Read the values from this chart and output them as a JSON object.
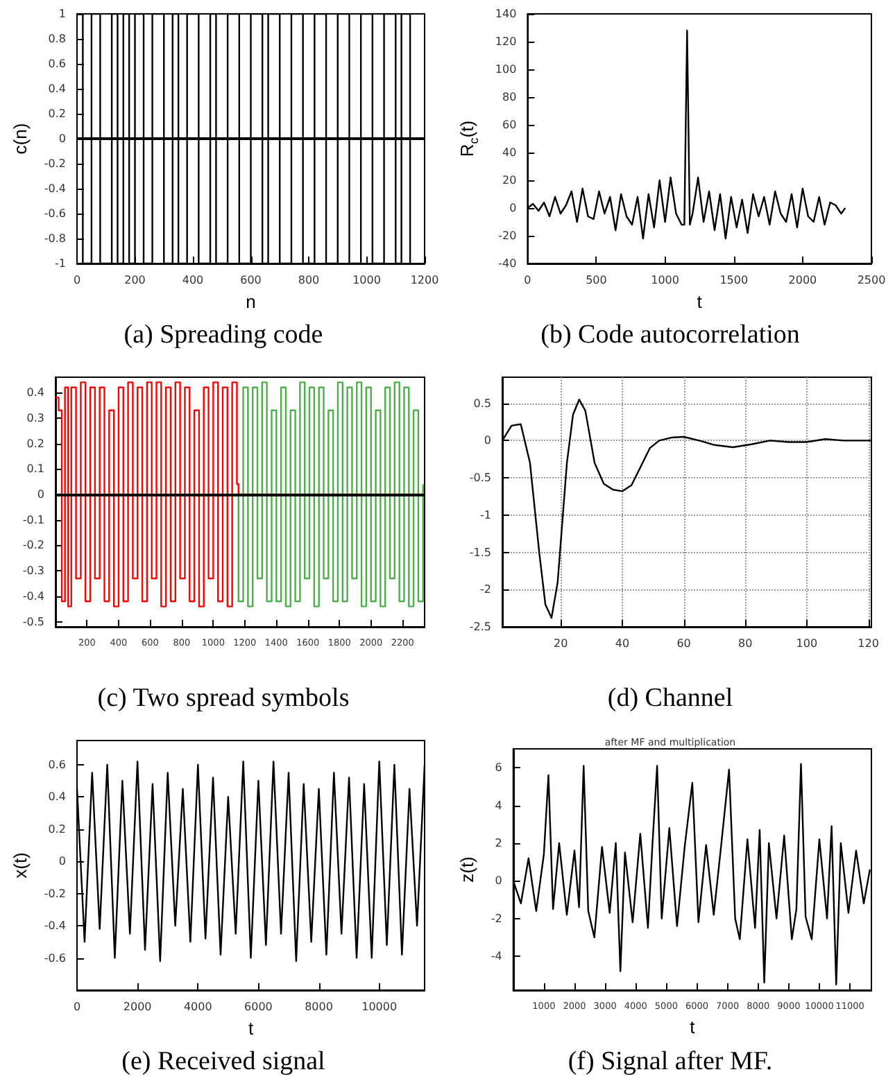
{
  "chart_data": [
    {
      "type": "step",
      "title": "(a) Spreading code",
      "xlabel": "n",
      "ylabel": "c(n)",
      "x": [
        0,
        20,
        50,
        80,
        120,
        140,
        160,
        180,
        200,
        230,
        260,
        300,
        330,
        350,
        380,
        420,
        460,
        480,
        520,
        560,
        600,
        640,
        660,
        700,
        740,
        780,
        820,
        860,
        900,
        940,
        980,
        1020,
        1060,
        1100,
        1120,
        1150
      ],
      "series": [
        {
          "color": "#000000",
          "values": [
            1,
            -1,
            1,
            -1,
            1,
            -1,
            1,
            -1,
            1,
            -1,
            1,
            -1,
            1,
            -1,
            1,
            -1,
            1,
            -1,
            1,
            -1,
            1,
            -1,
            1,
            -1,
            1,
            -1,
            1,
            -1,
            1,
            -1,
            1,
            -1,
            1,
            -1,
            1,
            -1
          ]
        }
      ],
      "xlim": [
        0,
        1200
      ],
      "xticks": [
        0,
        200,
        400,
        600,
        800,
        1000,
        1200
      ],
      "ylim": [
        -1,
        1
      ],
      "yticks": [
        -1,
        -0.8,
        -0.6,
        -0.4,
        -0.2,
        0,
        0.2,
        0.4,
        0.6,
        0.8,
        1
      ],
      "ref_lines": [
        {
          "axis": "y",
          "value": 0,
          "color": "#000000"
        }
      ]
    },
    {
      "type": "line",
      "title": "(b) Code autocorrelation",
      "xlabel": "t",
      "ylabel": "R$_{c}$(t)",
      "x": [
        0,
        40,
        80,
        120,
        160,
        200,
        240,
        280,
        320,
        360,
        400,
        440,
        480,
        520,
        560,
        600,
        640,
        680,
        720,
        760,
        800,
        840,
        880,
        920,
        960,
        1000,
        1040,
        1080,
        1120,
        1140,
        1160,
        1180,
        1200,
        1240,
        1280,
        1320,
        1360,
        1400,
        1440,
        1480,
        1520,
        1560,
        1600,
        1640,
        1680,
        1720,
        1760,
        1800,
        1840,
        1880,
        1920,
        1960,
        2000,
        2040,
        2080,
        2120,
        2160,
        2200,
        2240,
        2280,
        2310
      ],
      "series": [
        {
          "color": "#000000",
          "values": [
            0,
            3,
            -2,
            4,
            -6,
            8,
            -4,
            2,
            12,
            -10,
            14,
            -6,
            -8,
            12,
            -4,
            8,
            -16,
            10,
            -6,
            -12,
            8,
            -22,
            10,
            -14,
            20,
            -10,
            22,
            -4,
            -12,
            -12,
            128,
            -12,
            -4,
            22,
            -10,
            12,
            -16,
            10,
            -22,
            8,
            -14,
            6,
            -18,
            10,
            -6,
            8,
            -12,
            12,
            -4,
            -10,
            10,
            -14,
            14,
            -6,
            -10,
            8,
            -12,
            4,
            2,
            -4,
            0
          ]
        }
      ],
      "xlim": [
        0,
        2500
      ],
      "xticks": [
        0,
        500,
        1000,
        1500,
        2000,
        2500
      ],
      "ylim": [
        -40,
        140
      ],
      "yticks": [
        -40,
        -20,
        0,
        20,
        40,
        60,
        80,
        100,
        120,
        140
      ]
    },
    {
      "type": "step",
      "title": "(c) Two spread symbols",
      "series": [
        {
          "color": "#ff0000",
          "x": [
            0,
            20,
            40,
            60,
            80,
            100,
            130,
            160,
            190,
            220,
            250,
            280,
            310,
            340,
            370,
            400,
            430,
            460,
            490,
            520,
            550,
            580,
            610,
            640,
            670,
            700,
            730,
            760,
            790,
            820,
            850,
            880,
            910,
            940,
            970,
            1000,
            1030,
            1060,
            1090,
            1120,
            1150,
            1160,
            2340
          ],
          "values": [
            0.38,
            0.33,
            -0.42,
            0.42,
            -0.44,
            0.42,
            -0.33,
            0.44,
            -0.42,
            0.42,
            -0.33,
            0.42,
            -0.42,
            0.33,
            -0.44,
            0.42,
            -0.42,
            0.44,
            -0.33,
            0.42,
            -0.42,
            0.44,
            -0.33,
            0.44,
            -0.44,
            0.42,
            -0.42,
            0.44,
            -0.33,
            0.42,
            -0.42,
            0.33,
            -0.44,
            0.42,
            -0.33,
            0.44,
            -0.42,
            0.42,
            -0.44,
            0.44,
            0.04,
            0,
            0
          ]
        },
        {
          "color": "#4daf4a",
          "x": [
            0,
            1160,
            1190,
            1220,
            1250,
            1280,
            1310,
            1340,
            1370,
            1400,
            1430,
            1460,
            1490,
            1520,
            1550,
            1580,
            1610,
            1640,
            1670,
            1700,
            1730,
            1760,
            1790,
            1820,
            1850,
            1880,
            1910,
            1940,
            1970,
            2000,
            2030,
            2060,
            2090,
            2120,
            2150,
            2180,
            2210,
            2240,
            2270,
            2300,
            2330
          ],
          "values": [
            0,
            -0.42,
            0.42,
            -0.44,
            0.42,
            -0.33,
            0.44,
            -0.42,
            0.33,
            -0.42,
            0.42,
            -0.44,
            0.33,
            -0.42,
            0.44,
            -0.33,
            0.42,
            -0.44,
            0.42,
            -0.33,
            0.33,
            -0.42,
            0.44,
            -0.42,
            0.42,
            -0.33,
            0.44,
            -0.44,
            0.42,
            -0.42,
            0.33,
            -0.44,
            0.42,
            -0.33,
            0.44,
            -0.42,
            0.42,
            -0.44,
            0.33,
            -0.42,
            0.04
          ]
        }
      ],
      "xlim": [
        0,
        2340
      ],
      "xticks": [
        200,
        400,
        600,
        800,
        1000,
        1200,
        1400,
        1600,
        1800,
        2000,
        2200
      ],
      "ylim": [
        -0.52,
        0.46
      ],
      "yticks": [
        -0.5,
        -0.4,
        -0.3,
        -0.2,
        -0.1,
        0,
        0.1,
        0.2,
        0.3,
        0.4
      ],
      "ref_lines": [
        {
          "axis": "y",
          "value": 0,
          "color": "#000000"
        }
      ]
    },
    {
      "type": "line",
      "title": "(d) Channel",
      "grid": true,
      "x": [
        1,
        4,
        7,
        10,
        13,
        15,
        17,
        19,
        22,
        24,
        26,
        28,
        31,
        34,
        37,
        40,
        43,
        46,
        49,
        52,
        56,
        60,
        65,
        70,
        76,
        82,
        88,
        94,
        100,
        106,
        112,
        121
      ],
      "series": [
        {
          "color": "#000000",
          "values": [
            0,
            0.2,
            0.22,
            -0.3,
            -1.5,
            -2.2,
            -2.38,
            -1.9,
            -0.3,
            0.35,
            0.55,
            0.4,
            -0.3,
            -0.58,
            -0.66,
            -0.68,
            -0.6,
            -0.35,
            -0.1,
            0,
            0.04,
            0.05,
            0,
            -0.06,
            -0.09,
            -0.05,
            0,
            -0.02,
            -0.02,
            0.02,
            0,
            0
          ]
        }
      ],
      "xlim": [
        1,
        121
      ],
      "xticks": [
        20,
        40,
        60,
        80,
        100,
        120
      ],
      "ylim": [
        -2.5,
        0.85
      ],
      "yticks": [
        -2.5,
        -2,
        -1.5,
        -1,
        -0.5,
        0,
        0.5
      ]
    },
    {
      "type": "line",
      "title": "(e) Received signal",
      "xlabel": "t",
      "ylabel": "x(t)",
      "x": [
        0,
        250,
        500,
        750,
        1000,
        1250,
        1500,
        1750,
        2000,
        2250,
        2500,
        2750,
        3000,
        3250,
        3500,
        3750,
        4000,
        4250,
        4500,
        4750,
        5000,
        5250,
        5500,
        5750,
        6000,
        6250,
        6500,
        6750,
        7000,
        7250,
        7500,
        7750,
        8000,
        8250,
        8500,
        8750,
        9000,
        9250,
        9500,
        9750,
        10000,
        10250,
        10500,
        10750,
        11000,
        11250,
        11500
      ],
      "series": [
        {
          "color": "#000000",
          "values": [
            0.45,
            -0.5,
            0.55,
            -0.42,
            0.6,
            -0.6,
            0.5,
            -0.45,
            0.62,
            -0.55,
            0.48,
            -0.62,
            0.55,
            -0.4,
            0.45,
            -0.5,
            0.6,
            -0.48,
            0.52,
            -0.58,
            0.4,
            -0.45,
            0.62,
            -0.6,
            0.5,
            -0.52,
            0.62,
            -0.45,
            0.55,
            -0.62,
            0.48,
            -0.5,
            0.45,
            -0.58,
            0.55,
            -0.45,
            0.52,
            -0.6,
            0.48,
            -0.6,
            0.62,
            -0.52,
            0.6,
            -0.58,
            0.45,
            -0.4,
            0.6
          ]
        }
      ],
      "xlim": [
        0,
        11500
      ],
      "xticks": [
        0,
        2000,
        4000,
        6000,
        8000,
        10000
      ],
      "ylim": [
        -0.8,
        0.75
      ],
      "yticks": [
        -0.6,
        -0.4,
        -0.2,
        0,
        0.2,
        0.4,
        0.6
      ]
    },
    {
      "type": "line",
      "title": "(f) Signal after MF.",
      "subtitle": "after MF and multiplication",
      "xlabel": "t",
      "ylabel": "z(t)",
      "x": [
        0,
        250,
        500,
        750,
        1000,
        1150,
        1300,
        1500,
        1750,
        2000,
        2150,
        2300,
        2450,
        2650,
        2900,
        3150,
        3350,
        3500,
        3650,
        3900,
        4150,
        4400,
        4550,
        4700,
        4850,
        5100,
        5350,
        5600,
        5850,
        6050,
        6300,
        6550,
        6800,
        7050,
        7250,
        7400,
        7650,
        7900,
        8050,
        8200,
        8350,
        8600,
        8850,
        9100,
        9250,
        9400,
        9550,
        9750,
        10000,
        10250,
        10400,
        10550,
        10700,
        10950,
        11200,
        11450,
        11650
      ],
      "series": [
        {
          "color": "#000000",
          "values": [
            0,
            -1.2,
            1.2,
            -1.6,
            1.4,
            5.6,
            -1.5,
            2.0,
            -1.8,
            1.6,
            -1.4,
            6.1,
            -1.6,
            -3.0,
            1.8,
            -1.7,
            2.0,
            -4.8,
            1.5,
            -2.2,
            2.5,
            -2.5,
            2.0,
            6.1,
            -2.0,
            2.8,
            -2.4,
            1.8,
            5.2,
            -2.2,
            1.9,
            -1.8,
            2.0,
            5.9,
            -2.0,
            -3.1,
            2.2,
            -2.5,
            2.7,
            -5.4,
            2.0,
            -2.0,
            2.4,
            -3.1,
            -1.5,
            6.2,
            -1.9,
            -3.1,
            2.2,
            -2.0,
            2.9,
            -5.5,
            2.0,
            -1.7,
            1.6,
            -1.2,
            0.6
          ]
        }
      ],
      "xlim": [
        0,
        11700
      ],
      "xticks": [
        1000,
        2000,
        3000,
        4000,
        5000,
        6000,
        7000,
        8000,
        9000,
        10000,
        11000
      ],
      "ylim": [
        -5.8,
        7
      ],
      "yticks": [
        -4,
        -2,
        0,
        2,
        4,
        6
      ]
    }
  ]
}
